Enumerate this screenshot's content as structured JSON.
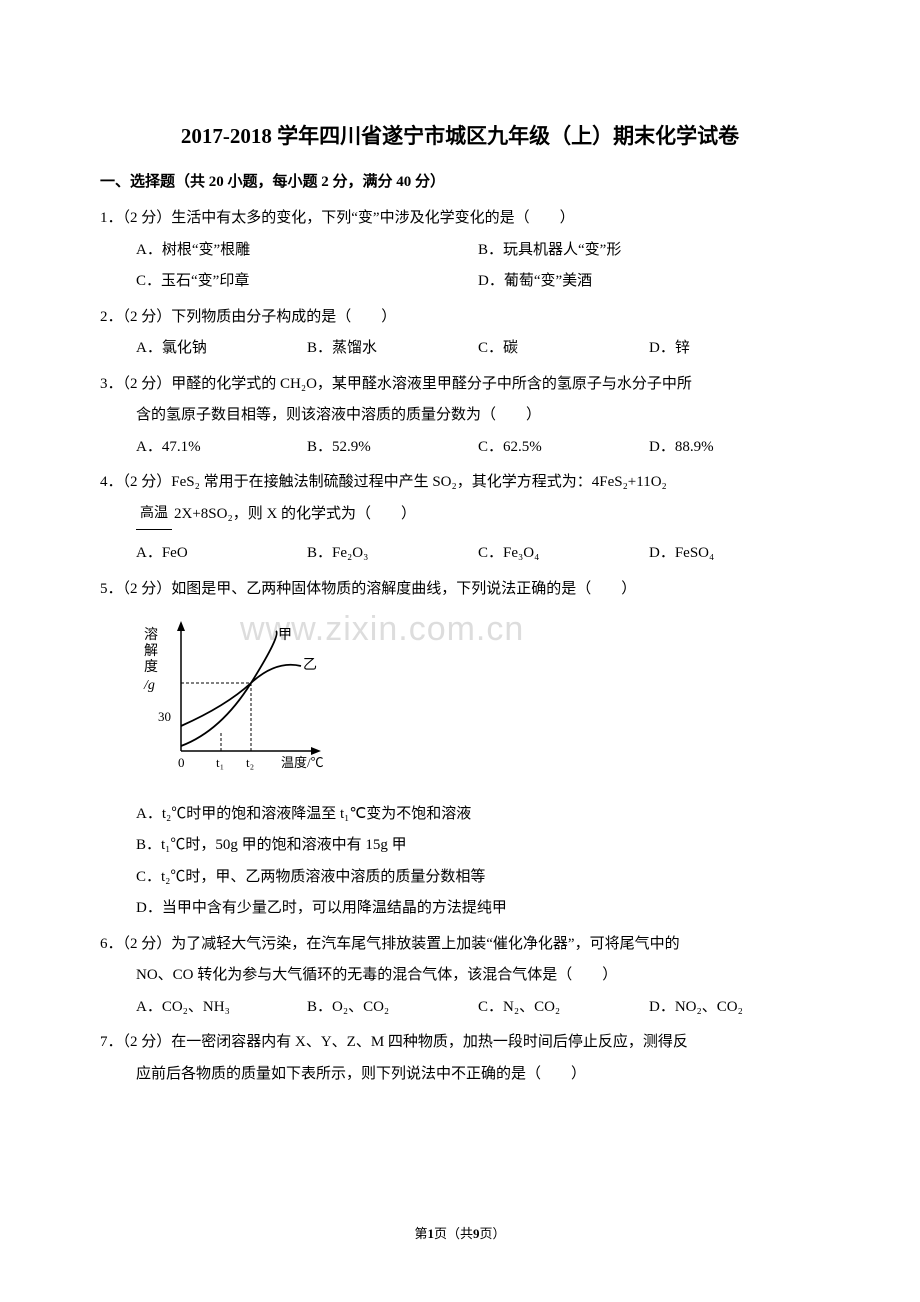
{
  "title": "2017-2018 学年四川省遂宁市城区九年级（上）期末化学试卷",
  "section": "一、选择题（共 20 小题，每小题 2 分，满分 40 分）",
  "q1": {
    "text": "1．（2 分）生活中有太多的变化，下列“变”中涉及化学变化的是（　　）",
    "a": "A．树根“变”根雕",
    "b": "B．玩具机器人“变”形",
    "c": "C．玉石“变”印章",
    "d": "D．葡萄“变”美酒"
  },
  "q2": {
    "text": "2．（2 分）下列物质由分子构成的是（　　）",
    "a": "A．氯化钠",
    "b": "B．蒸馏水",
    "c": "C．碳",
    "d": "D．锌"
  },
  "q3": {
    "line1": "3．（2 分）甲醛的化学式的 CH₂O，某甲醛水溶液里甲醛分子中所含的氢原子与水分子中所",
    "line2": "含的氢原子数目相等，则该溶液中溶质的质量分数为（　　）",
    "a": "A．47.1%",
    "b": "B．52.9%",
    "c": "C．62.5%",
    "d": "D．88.9%"
  },
  "q4": {
    "line1": "4．（2 分）FeS₂ 常用于在接触法制硫酸过程中产生 SO₂，其化学方程式为：4FeS₂+11O₂",
    "cond": "高温",
    "line2": "2X+8SO₂，则 X 的化学式为（　　）",
    "a": "A．FeO",
    "b": "B．Fe₂O₃",
    "c": "C．Fe₃O₄",
    "d": "D．FeSO₄"
  },
  "q5": {
    "text": "5．（2 分）如图是甲、乙两种固体物质的溶解度曲线，下列说法正确的是（　　）",
    "a": "A．t₂℃时甲的饱和溶液降温至 t₁℃变为不饱和溶液",
    "b": "B．t₁℃时，50g 甲的饱和溶液中有 15g 甲",
    "c": "C．t₂℃时，甲、乙两物质溶液中溶质的质量分数相等",
    "d": "D．当甲中含有少量乙时，可以用降温结晶的方法提纯甲",
    "chart": {
      "y_label": "溶解度/g",
      "x_label": "温度/℃",
      "y_tick": "30",
      "x_ticks": [
        "0",
        "t₁",
        "t₂"
      ],
      "series": [
        "甲",
        "乙"
      ],
      "colors": {
        "axis": "#000000",
        "curve": "#000000",
        "dash": "#000000"
      },
      "width": 170,
      "height": 150
    }
  },
  "q6": {
    "line1": "6．（2 分）为了减轻大气污染，在汽车尾气排放装置上加装“催化净化器”，可将尾气中的",
    "line2": "NO、CO 转化为参与大气循环的无毒的混合气体，该混合气体是（　　）",
    "a": "A．CO₂、NH₃",
    "b": "B．O₂、CO₂",
    "c": "C．N₂、CO₂",
    "d": "D．NO₂、CO₂"
  },
  "q7": {
    "line1": "7．（2 分）在一密闭容器内有 X、Y、Z、M 四种物质，加热一段时间后停止反应，测得反",
    "line2": "应前后各物质的质量如下表所示，则下列说法中不正确的是（　　）"
  },
  "footer": {
    "pre": "第",
    "cur": "1",
    "mid": "页（共",
    "total": "9",
    "post": "页）"
  },
  "watermark": "www.zixin.com.cn"
}
